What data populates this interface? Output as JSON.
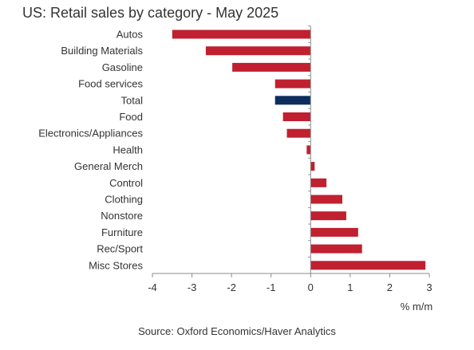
{
  "chart_data": {
    "type": "bar",
    "orientation": "horizontal",
    "title": "US: Retail sales by category - May 2025",
    "xlabel": "% m/m",
    "ylabel": "",
    "xlim": [
      -4,
      3
    ],
    "xticks": [
      -4,
      -3,
      -2,
      -1,
      0,
      1,
      2,
      3
    ],
    "grid": false,
    "legend": "none",
    "categories": [
      "Autos",
      "Building Materials",
      "Gasoline",
      "Food services",
      "Total",
      "Food",
      "Electronics/Appliances",
      "Health",
      "General Merch",
      "Control",
      "Clothing",
      "Nonstore",
      "Furniture",
      "Rec/Sport",
      "Misc Stores"
    ],
    "values": [
      -3.5,
      -2.65,
      -1.98,
      -0.9,
      -0.9,
      -0.7,
      -0.6,
      -0.1,
      0.1,
      0.4,
      0.8,
      0.9,
      1.2,
      1.3,
      2.9
    ],
    "highlight_category": "Total",
    "colors": {
      "bar": "#c0202f",
      "highlight": "#0d2e5c",
      "axis": "#8c8c8c"
    },
    "source": "Source: Oxford Economics/Haver Analytics"
  }
}
